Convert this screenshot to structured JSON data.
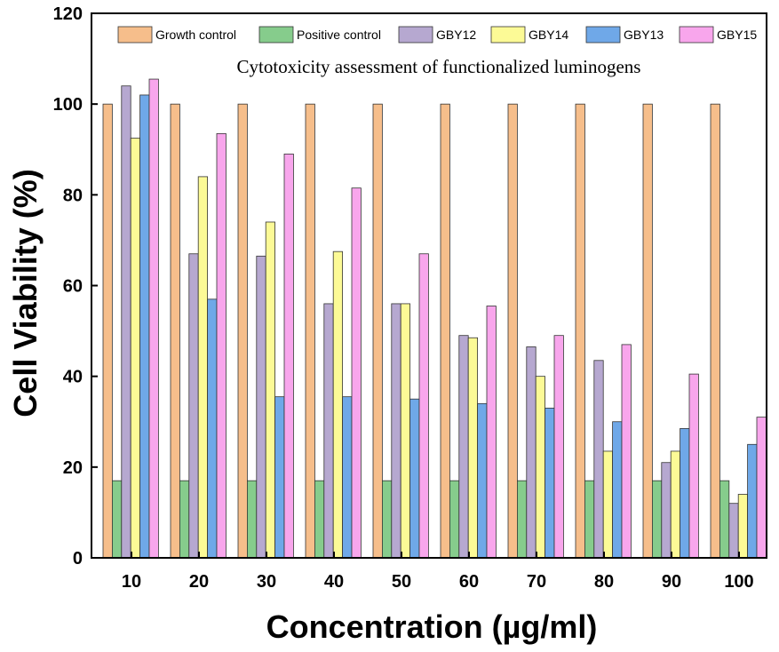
{
  "chart_data": {
    "type": "bar",
    "title": "Cytotoxicity assessment of functionalized luminogens",
    "xlabel": "Concentration (µg/ml)",
    "ylabel": "Cell Viability (%)",
    "ylim": [
      0,
      120
    ],
    "yticks": [
      "0",
      "20",
      "40",
      "60",
      "80",
      "100",
      "120"
    ],
    "categories": [
      "10",
      "20",
      "30",
      "40",
      "50",
      "60",
      "70",
      "80",
      "90",
      "100"
    ],
    "legend_position": "top",
    "series": [
      {
        "name": "Growth control",
        "color": "#F6BE8B",
        "values": [
          100,
          100,
          100,
          100,
          100,
          100,
          100,
          100,
          100,
          100
        ]
      },
      {
        "name": "Positive control",
        "color": "#86CC8C",
        "values": [
          17,
          17,
          17,
          17,
          17,
          17,
          17,
          17,
          17,
          17
        ]
      },
      {
        "name": "GBY12",
        "color": "#B6A8D0",
        "values": [
          104,
          67,
          66.5,
          56,
          56,
          49,
          46.5,
          43.5,
          21,
          12
        ]
      },
      {
        "name": "GBY14",
        "color": "#FCFA96",
        "values": [
          92.5,
          84,
          74,
          67.5,
          56,
          48.5,
          40,
          23.5,
          23.5,
          14
        ]
      },
      {
        "name": "GBY13",
        "color": "#6FA8E8",
        "values": [
          102,
          57,
          35.5,
          35.5,
          35,
          34,
          33,
          30,
          28.5,
          25
        ]
      },
      {
        "name": "GBY15",
        "color": "#F8A6EC",
        "values": [
          105.5,
          93.5,
          89,
          81.5,
          67,
          55.5,
          49,
          47,
          40.5,
          31
        ]
      }
    ]
  }
}
